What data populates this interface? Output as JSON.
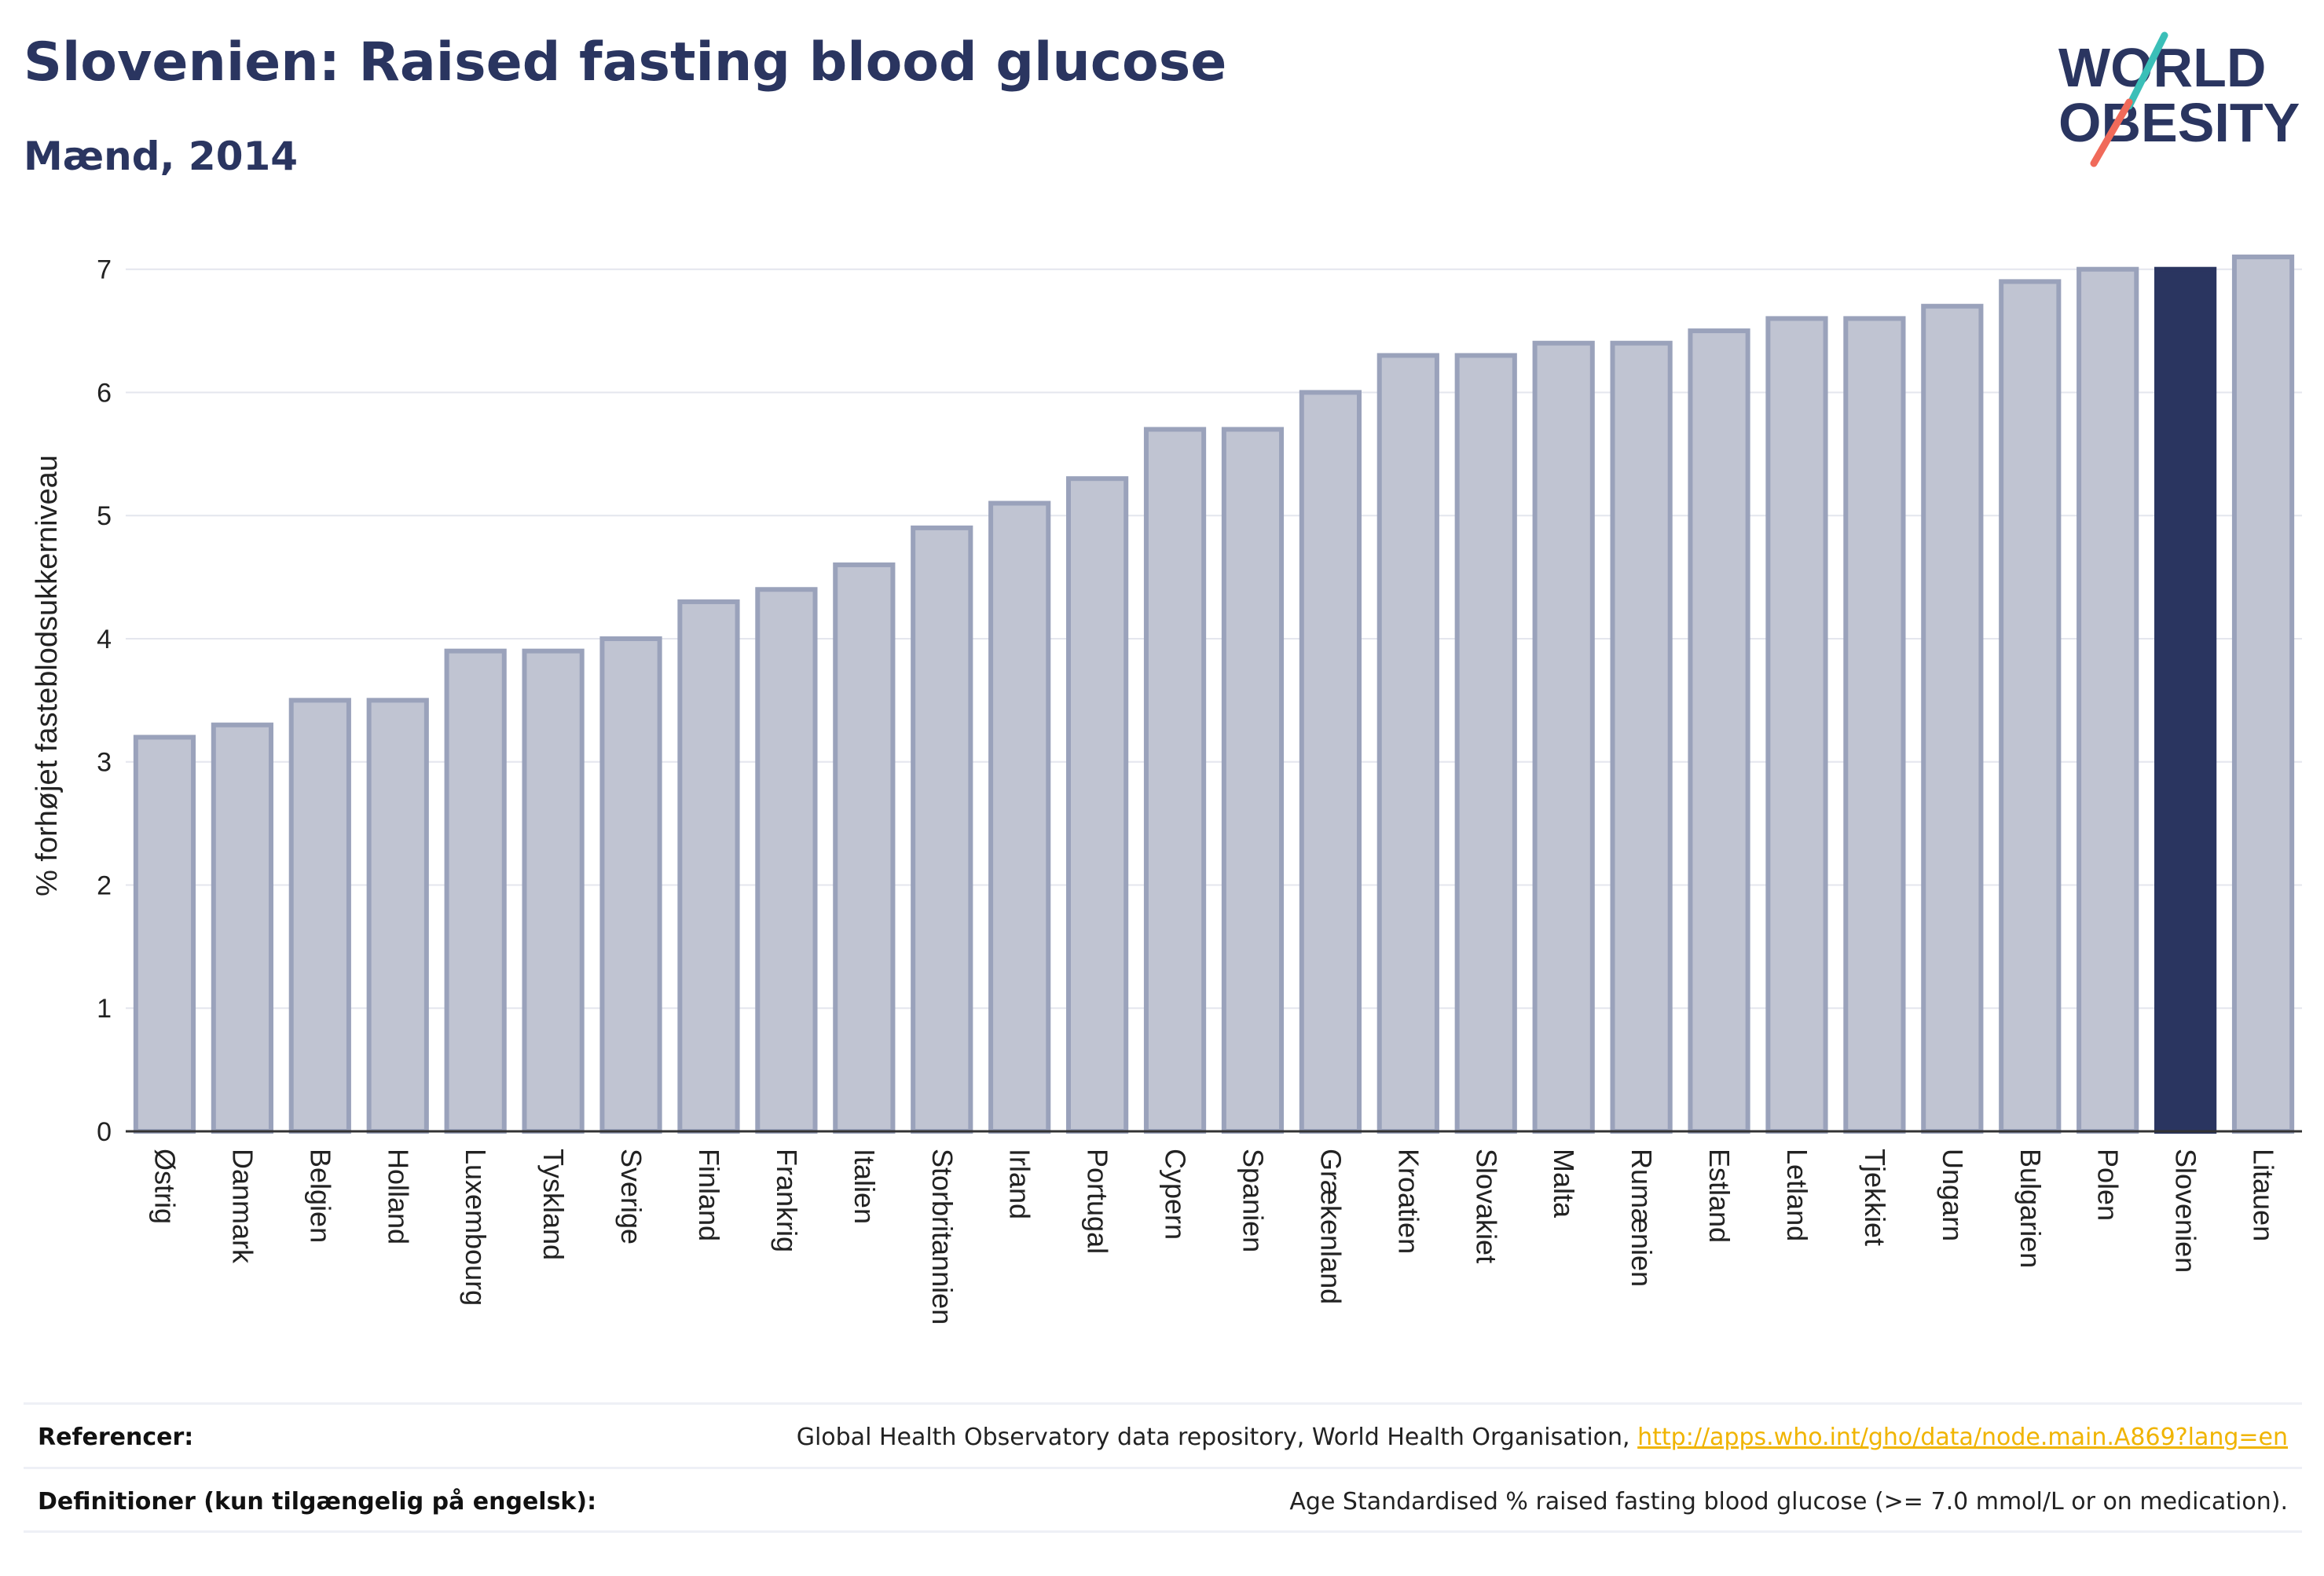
{
  "header": {
    "title": "Slovenien: Raised fasting blood glucose",
    "subtitle": "Mænd, 2014"
  },
  "logo": {
    "line1": "WORLD",
    "line2": "OBESITY",
    "accent_teal": "#3bbfb8",
    "accent_coral": "#f06a5a",
    "text_color": "#2a3560"
  },
  "chart_data": {
    "type": "bar",
    "ylabel": "% forhøjet fasteblodsukkerniveau",
    "ylim": [
      0,
      7.4
    ],
    "yticks": [
      0,
      1,
      2,
      3,
      4,
      5,
      6,
      7
    ],
    "grid": true,
    "highlight": "Slovenien",
    "colors": {
      "bar": "#c0c4d2",
      "bar_border": "#9aa2bb",
      "highlight": "#2a3560"
    },
    "categories": [
      "Østrig",
      "Danmark",
      "Belgien",
      "Holland",
      "Luxembourg",
      "Tyskland",
      "Sverige",
      "Finland",
      "Frankrig",
      "Italien",
      "Storbritannien",
      "Irland",
      "Portugal",
      "Cypern",
      "Spanien",
      "Grækenland",
      "Kroatien",
      "Slovakiet",
      "Malta",
      "Rumænien",
      "Estland",
      "Letland",
      "Tjekkiet",
      "Ungarn",
      "Bulgarien",
      "Polen",
      "Slovenien",
      "Litauen"
    ],
    "values": [
      3.2,
      3.3,
      3.5,
      3.5,
      3.9,
      3.9,
      4.0,
      4.3,
      4.4,
      4.6,
      4.9,
      5.1,
      5.3,
      5.7,
      5.7,
      6.0,
      6.3,
      6.3,
      6.4,
      6.4,
      6.5,
      6.6,
      6.6,
      6.7,
      6.9,
      7.0,
      7.0,
      7.1
    ]
  },
  "footer": {
    "references_label": "Referencer:",
    "references_text": "Global Health Observatory data repository, World Health Organisation,",
    "references_link": "http://apps.who.int/gho/data/node.main.A869?lang=en",
    "definitions_label": "Definitioner (kun tilgængelig på engelsk):",
    "definitions_text": "Age Standardised % raised fasting blood glucose (>= 7.0 mmol/L or on medication)."
  }
}
